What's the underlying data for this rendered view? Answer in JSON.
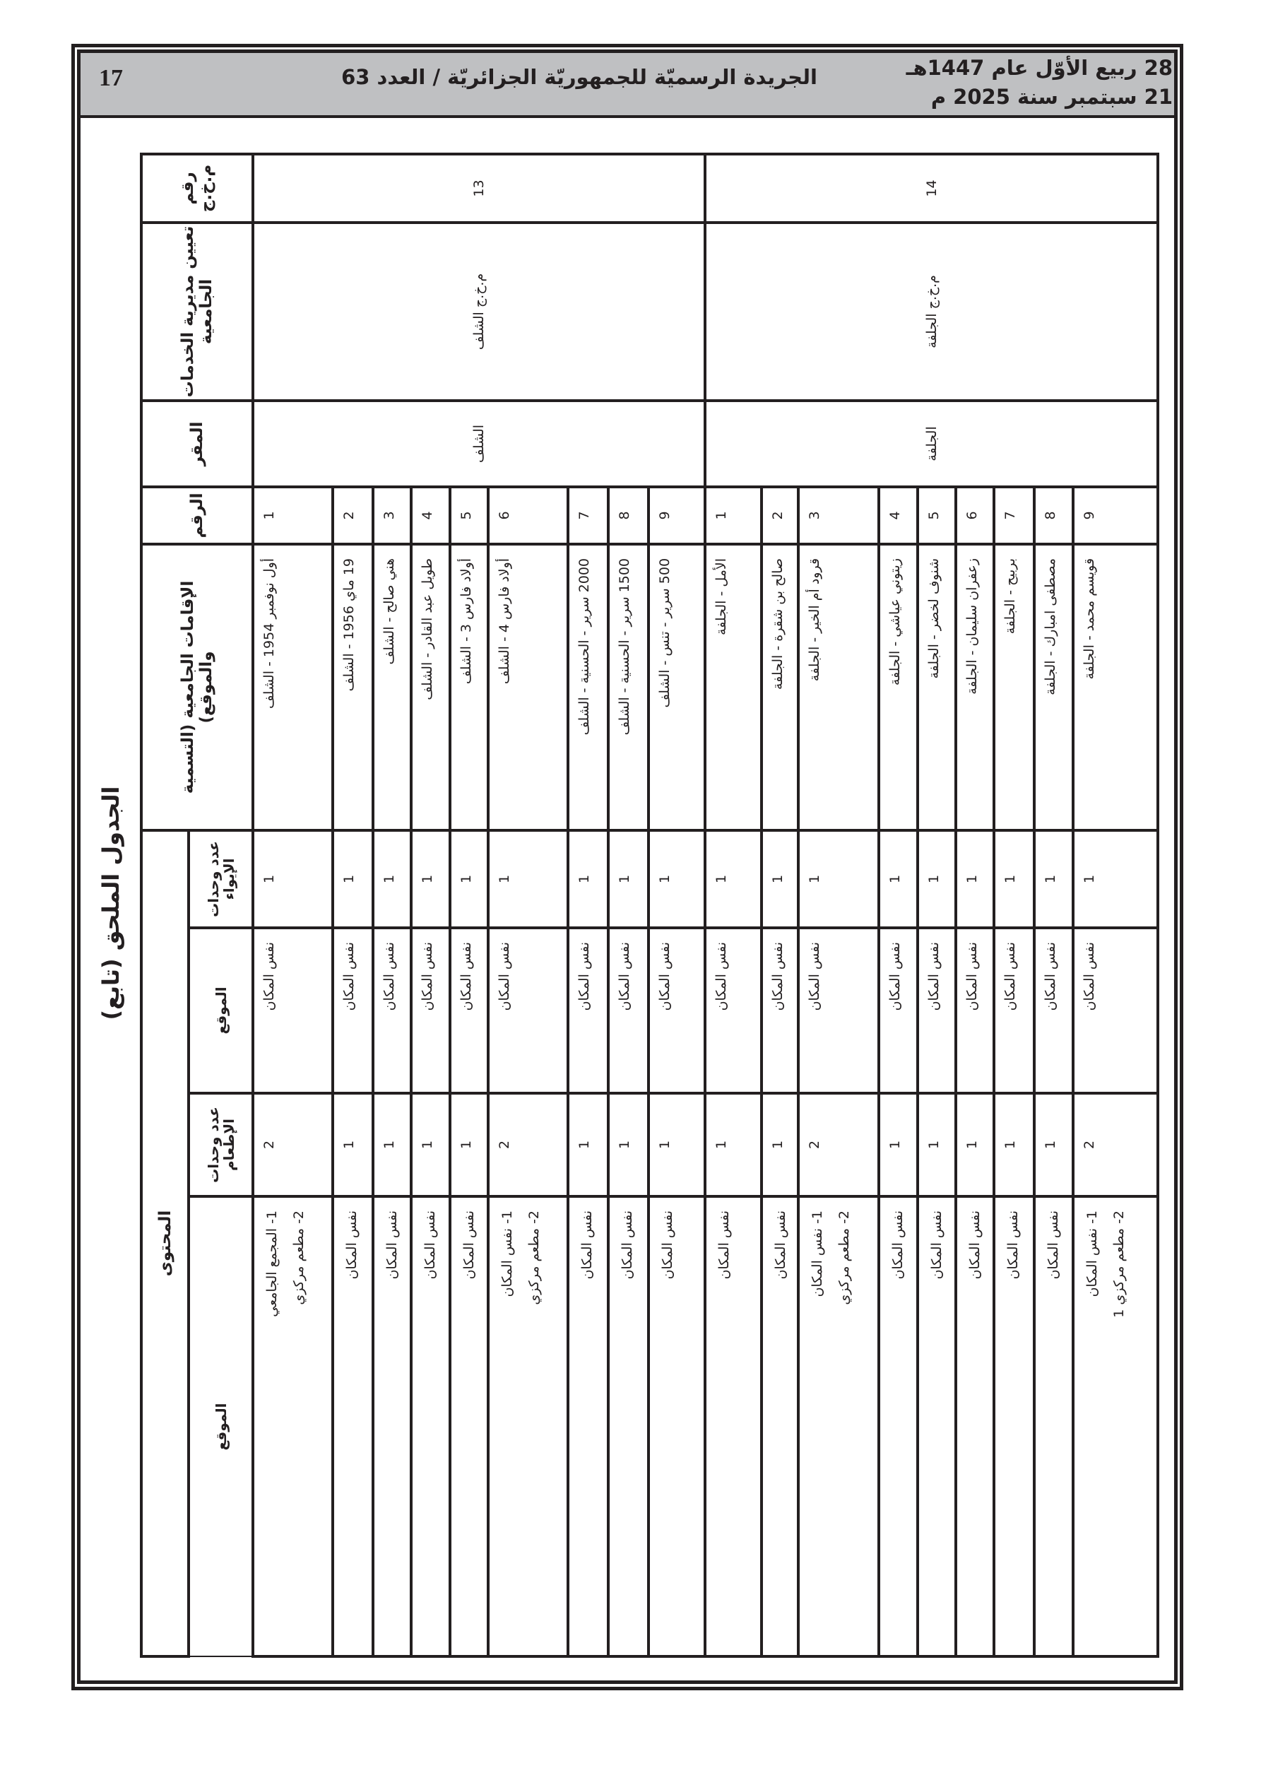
{
  "header": {
    "page_number": "17",
    "journal_title": "الجريدة الرسميّة للجمهوريّة الجزائريّة / العدد 63",
    "hijri_date": "28 ربيع الأوّل عام 1447هـ",
    "gregorian_date": "21 سبتمبر سنة 2025 م"
  },
  "caption": "الجدول الملحق (تابع)",
  "table": {
    "headers": {
      "code": "رقم م.خ.ج",
      "directorate": "تعيين مديرية الخدمات الجامعية",
      "seat": "المقر",
      "number": "الرقم",
      "residence": "الإقامات الجامعية (التسمية والموقع)",
      "content": "المحتوى",
      "lodging_units": "عدد وحدات الإيواء",
      "lodging_site": "الموقع",
      "catering_units": "عدد وحدات الإطعام",
      "catering_site": "الموقع"
    },
    "groups": [
      {
        "code": "13",
        "directorate": "م.خ.ج الشلف",
        "seat": "الشلف",
        "rows": [
          {
            "num": "1",
            "name": "أول نوفمبر 1954 - الشلف",
            "lodging_units": "1",
            "lodging_site": "نفس المكان",
            "catering_units": "2",
            "catering_site": [
              "1- المجمع الجامعي",
              "2- مطعم مركزي"
            ]
          },
          {
            "num": "2",
            "name": "19 ماي 1956 - الشلف",
            "lodging_units": "1",
            "lodging_site": "نفس المكان",
            "catering_units": "1",
            "catering_site": [
              "نفس المكان"
            ]
          },
          {
            "num": "3",
            "name": "هني صالح - الشلف",
            "lodging_units": "1",
            "lodging_site": "نفس المكان",
            "catering_units": "1",
            "catering_site": [
              "نفس المكان"
            ]
          },
          {
            "num": "4",
            "name": "طويل عبد القادر - الشلف",
            "lodging_units": "1",
            "lodging_site": "نفس المكان",
            "catering_units": "1",
            "catering_site": [
              "نفس المكان"
            ]
          },
          {
            "num": "5",
            "name": "أولاد فارس 3 - الشلف",
            "lodging_units": "1",
            "lodging_site": "نفس المكان",
            "catering_units": "1",
            "catering_site": [
              "نفس المكان"
            ]
          },
          {
            "num": "6",
            "name": "أولاد فارس 4 - الشلف",
            "lodging_units": "1",
            "lodging_site": "نفس المكان",
            "catering_units": "2",
            "catering_site": [
              "1- نفس المكان",
              "2- مطعم مركزي"
            ]
          },
          {
            "num": "7",
            "name": "2000 سرير - الحسنية - الشلف",
            "lodging_units": "1",
            "lodging_site": "نفس المكان",
            "catering_units": "1",
            "catering_site": [
              "نفس المكان"
            ]
          },
          {
            "num": "8",
            "name": "1500 سرير - الحسنية - الشلف",
            "lodging_units": "1",
            "lodging_site": "نفس المكان",
            "catering_units": "1",
            "catering_site": [
              "نفس المكان"
            ]
          },
          {
            "num": "9",
            "name": "500 سرير - تنس - الشلف",
            "lodging_units": "1",
            "lodging_site": "نفس المكان",
            "catering_units": "1",
            "catering_site": [
              "نفس المكان"
            ]
          }
        ]
      },
      {
        "code": "14",
        "directorate": "م.خ.ج الجلفة",
        "seat": "الجلفة",
        "rows": [
          {
            "num": "1",
            "name": "الأمل - الجلفة",
            "lodging_units": "1",
            "lodging_site": "نفس المكان",
            "catering_units": "1",
            "catering_site": [
              "نفس المكان"
            ]
          },
          {
            "num": "2",
            "name": "صالح بن شقرة - الجلفة",
            "lodging_units": "1",
            "lodging_site": "نفس المكان",
            "catering_units": "1",
            "catering_site": [
              "نفس المكان"
            ]
          },
          {
            "num": "3",
            "name": "قرود أم الخير - الجلفة",
            "lodging_units": "1",
            "lodging_site": "نفس المكان",
            "catering_units": "2",
            "catering_site": [
              "1- نفس المكان",
              "2- مطعم مركزي"
            ]
          },
          {
            "num": "4",
            "name": "زيتوني عياشي - الجلفة",
            "lodging_units": "1",
            "lodging_site": "نفس المكان",
            "catering_units": "1",
            "catering_site": [
              "نفس المكان"
            ]
          },
          {
            "num": "5",
            "name": "شنوف لخضر - الجلفة",
            "lodging_units": "1",
            "lodging_site": "نفس المكان",
            "catering_units": "1",
            "catering_site": [
              "نفس المكان"
            ]
          },
          {
            "num": "6",
            "name": "زعفران سليمان - الجلفة",
            "lodging_units": "1",
            "lodging_site": "نفس المكان",
            "catering_units": "1",
            "catering_site": [
              "نفس المكان"
            ]
          },
          {
            "num": "7",
            "name": "بربيح - الجلفة",
            "lodging_units": "1",
            "lodging_site": "نفس المكان",
            "catering_units": "1",
            "catering_site": [
              "نفس المكان"
            ]
          },
          {
            "num": "8",
            "name": "مصطفى امبارك - الجلفة",
            "lodging_units": "1",
            "lodging_site": "نفس المكان",
            "catering_units": "1",
            "catering_site": [
              "نفس المكان"
            ]
          },
          {
            "num": "9",
            "name": "قويسم محمد - الجلفة",
            "lodging_units": "1",
            "lodging_site": "نفس المكان",
            "catering_units": "2",
            "catering_site": [
              "1- نفس المكان",
              "2- مطعم مركزي 1"
            ]
          }
        ]
      }
    ]
  }
}
